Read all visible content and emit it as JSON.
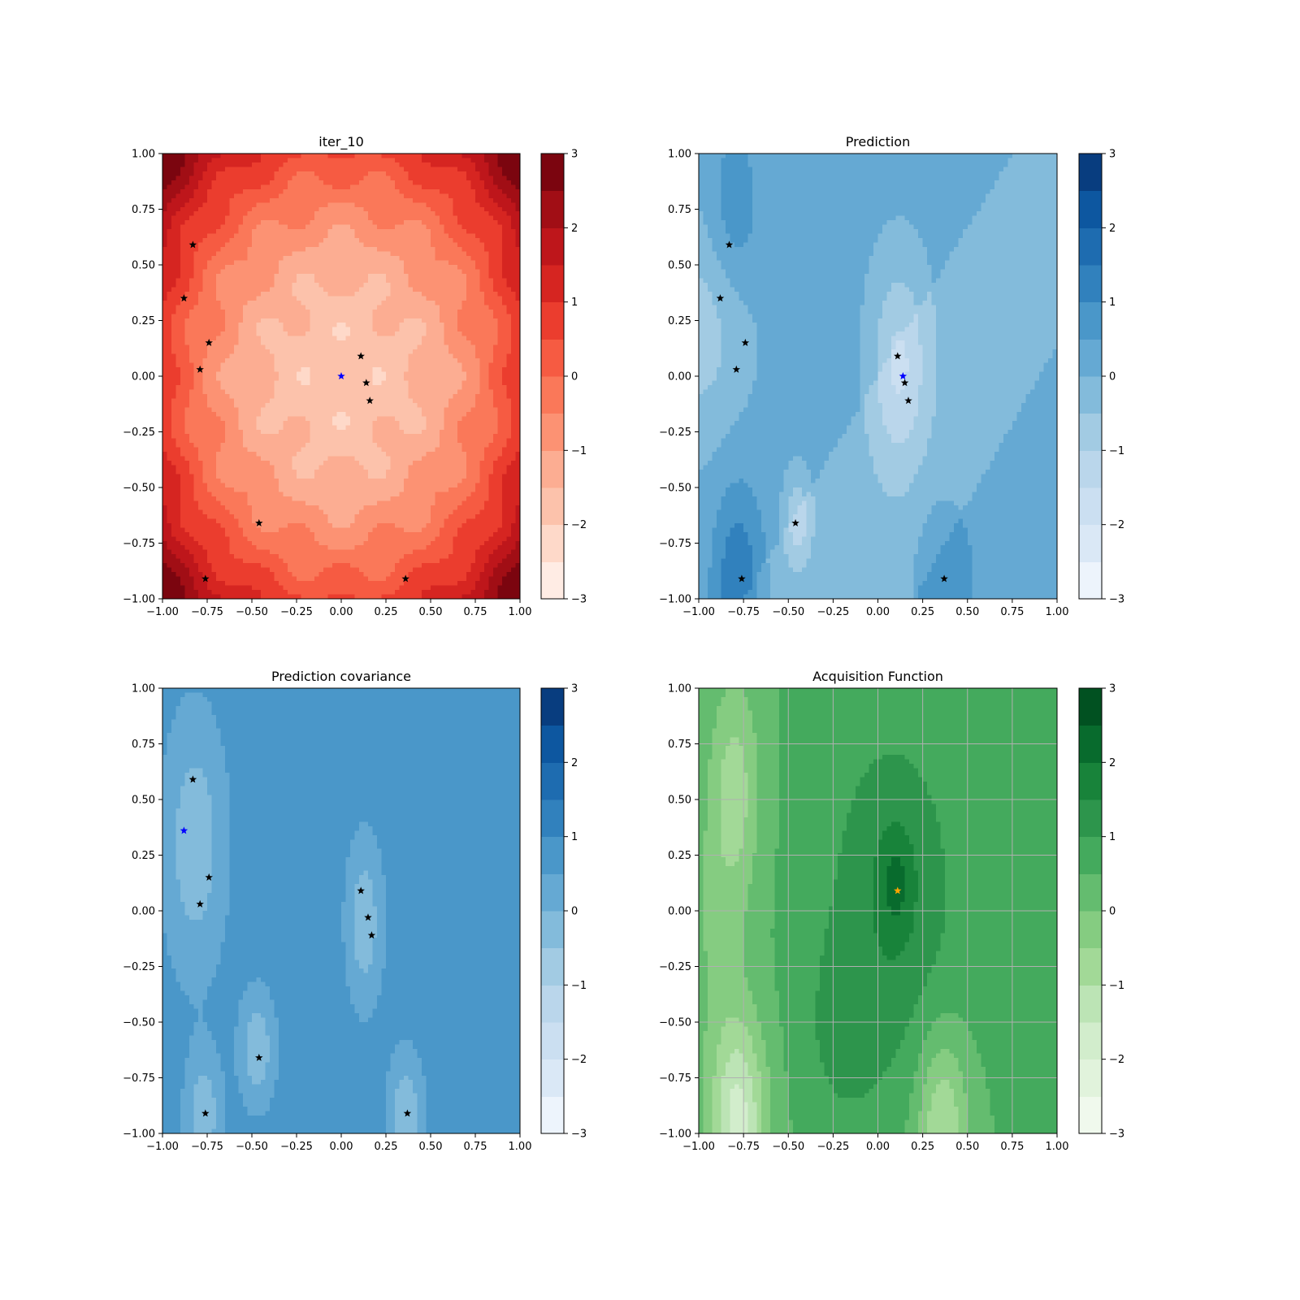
{
  "chart_data": [
    {
      "type": "heatmap",
      "title": "iter_10",
      "xlim": [
        -1,
        1
      ],
      "ylim": [
        -1,
        1
      ],
      "xticks": [
        "−1.00",
        "−0.75",
        "−0.50",
        "−0.25",
        "0.00",
        "0.25",
        "0.50",
        "0.75",
        "1.00"
      ],
      "yticks": [
        "−1.00",
        "−0.75",
        "−0.50",
        "−0.25",
        "0.00",
        "0.25",
        "0.50",
        "0.75",
        "1.00"
      ],
      "colormap": "Reds",
      "colorbar": {
        "range": [
          -3,
          3
        ],
        "levels": 12,
        "ticks": [
          "−3",
          "−2",
          "−1",
          "0",
          "1",
          "2",
          "3"
        ]
      },
      "grid": false,
      "markers": [
        {
          "x": -0.83,
          "y": 0.59,
          "color": "#000000"
        },
        {
          "x": -0.88,
          "y": 0.35,
          "color": "#000000"
        },
        {
          "x": -0.74,
          "y": 0.15,
          "color": "#000000"
        },
        {
          "x": -0.79,
          "y": 0.03,
          "color": "#000000"
        },
        {
          "x": 0.11,
          "y": 0.09,
          "color": "#000000"
        },
        {
          "x": 0.14,
          "y": -0.03,
          "color": "#000000"
        },
        {
          "x": 0.16,
          "y": -0.11,
          "color": "#000000"
        },
        {
          "x": -0.46,
          "y": -0.66,
          "color": "#000000"
        },
        {
          "x": -0.76,
          "y": -0.91,
          "color": "#000000"
        },
        {
          "x": 0.36,
          "y": -0.91,
          "color": "#000000"
        },
        {
          "x": 0.0,
          "y": 0.0,
          "color": "#0000ff"
        }
      ]
    },
    {
      "type": "heatmap",
      "title": "Prediction",
      "xlim": [
        -1,
        1
      ],
      "ylim": [
        -1,
        1
      ],
      "xticks": [
        "−1.00",
        "−0.75",
        "−0.50",
        "−0.25",
        "0.00",
        "0.25",
        "0.50",
        "0.75",
        "1.00"
      ],
      "yticks": [
        "−1.00",
        "−0.75",
        "−0.50",
        "−0.25",
        "0.00",
        "0.25",
        "0.50",
        "0.75",
        "1.00"
      ],
      "colormap": "Blues",
      "colorbar": {
        "range": [
          -3,
          3
        ],
        "levels": 12,
        "ticks": [
          "−3",
          "−2",
          "−1",
          "0",
          "1",
          "2",
          "3"
        ]
      },
      "grid": false,
      "markers": [
        {
          "x": -0.83,
          "y": 0.59,
          "color": "#000000"
        },
        {
          "x": -0.88,
          "y": 0.35,
          "color": "#000000"
        },
        {
          "x": -0.74,
          "y": 0.15,
          "color": "#000000"
        },
        {
          "x": -0.79,
          "y": 0.03,
          "color": "#000000"
        },
        {
          "x": 0.11,
          "y": 0.09,
          "color": "#000000"
        },
        {
          "x": 0.15,
          "y": -0.03,
          "color": "#000000"
        },
        {
          "x": 0.17,
          "y": -0.11,
          "color": "#000000"
        },
        {
          "x": -0.46,
          "y": -0.66,
          "color": "#000000"
        },
        {
          "x": -0.76,
          "y": -0.91,
          "color": "#000000"
        },
        {
          "x": 0.37,
          "y": -0.91,
          "color": "#000000"
        },
        {
          "x": 0.14,
          "y": 0.0,
          "color": "#0000ff"
        }
      ]
    },
    {
      "type": "heatmap",
      "title": "Prediction covariance",
      "xlim": [
        -1,
        1
      ],
      "ylim": [
        -1,
        1
      ],
      "xticks": [
        "−1.00",
        "−0.75",
        "−0.50",
        "−0.25",
        "0.00",
        "0.25",
        "0.50",
        "0.75",
        "1.00"
      ],
      "yticks": [
        "−1.00",
        "−0.75",
        "−0.50",
        "−0.25",
        "0.00",
        "0.25",
        "0.50",
        "0.75",
        "1.00"
      ],
      "colormap": "Blues",
      "colorbar": {
        "range": [
          -3,
          3
        ],
        "levels": 12,
        "ticks": [
          "−3",
          "−2",
          "−1",
          "0",
          "1",
          "2",
          "3"
        ]
      },
      "grid": false,
      "markers": [
        {
          "x": -0.83,
          "y": 0.59,
          "color": "#000000"
        },
        {
          "x": -0.74,
          "y": 0.15,
          "color": "#000000"
        },
        {
          "x": -0.79,
          "y": 0.03,
          "color": "#000000"
        },
        {
          "x": 0.11,
          "y": 0.09,
          "color": "#000000"
        },
        {
          "x": 0.15,
          "y": -0.03,
          "color": "#000000"
        },
        {
          "x": 0.17,
          "y": -0.11,
          "color": "#000000"
        },
        {
          "x": -0.46,
          "y": -0.66,
          "color": "#000000"
        },
        {
          "x": -0.76,
          "y": -0.91,
          "color": "#000000"
        },
        {
          "x": 0.37,
          "y": -0.91,
          "color": "#000000"
        },
        {
          "x": -0.88,
          "y": 0.36,
          "color": "#0000ff"
        }
      ]
    },
    {
      "type": "heatmap",
      "title": "Acquisition Function",
      "xlim": [
        -1,
        1
      ],
      "ylim": [
        -1,
        1
      ],
      "xticks": [
        "−1.00",
        "−0.75",
        "−0.50",
        "−0.25",
        "0.00",
        "0.25",
        "0.50",
        "0.75",
        "1.00"
      ],
      "yticks": [
        "−1.00",
        "−0.75",
        "−0.50",
        "−0.25",
        "0.00",
        "0.25",
        "0.50",
        "0.75",
        "1.00"
      ],
      "colormap": "Greens",
      "colorbar": {
        "range": [
          -3,
          3
        ],
        "levels": 12,
        "ticks": [
          "−3",
          "−2",
          "−1",
          "0",
          "1",
          "2",
          "3"
        ]
      },
      "grid": true,
      "markers": [
        {
          "x": 0.11,
          "y": 0.09,
          "color": "#ffa500"
        }
      ]
    }
  ]
}
